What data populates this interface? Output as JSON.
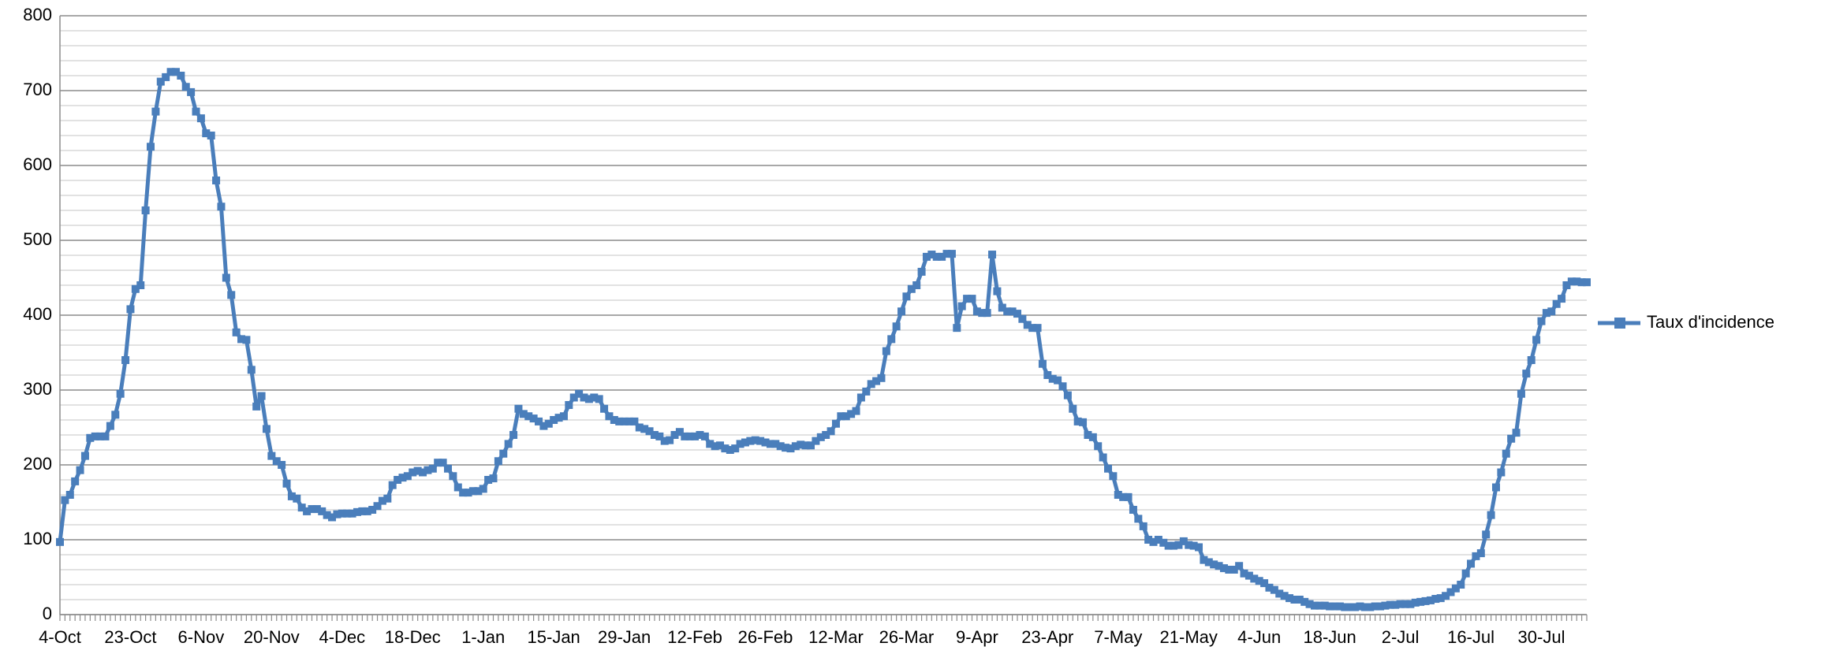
{
  "chart_data": {
    "type": "line",
    "categories": [
      "4-Oct",
      null,
      null,
      null,
      null,
      null,
      null,
      null,
      null,
      null,
      null,
      null,
      null,
      null,
      "23-Oct",
      null,
      null,
      null,
      null,
      null,
      null,
      null,
      null,
      null,
      null,
      null,
      null,
      null,
      "6-Nov",
      null,
      null,
      null,
      null,
      null,
      null,
      null,
      null,
      null,
      null,
      null,
      null,
      null,
      "20-Nov",
      null,
      null,
      null,
      null,
      null,
      null,
      null,
      null,
      null,
      null,
      null,
      null,
      null,
      "4-Dec",
      null,
      null,
      null,
      null,
      null,
      null,
      null,
      null,
      null,
      null,
      null,
      null,
      null,
      "18-Dec",
      null,
      null,
      null,
      null,
      null,
      null,
      null,
      null,
      null,
      null,
      null,
      null,
      null,
      "1-Jan",
      null,
      null,
      null,
      null,
      null,
      null,
      null,
      null,
      null,
      null,
      null,
      null,
      null,
      "15-Jan",
      null,
      null,
      null,
      null,
      null,
      null,
      null,
      null,
      null,
      null,
      null,
      null,
      null,
      "29-Jan",
      null,
      null,
      null,
      null,
      null,
      null,
      null,
      null,
      null,
      null,
      null,
      null,
      null,
      "12-Feb",
      null,
      null,
      null,
      null,
      null,
      null,
      null,
      null,
      null,
      null,
      null,
      null,
      null,
      "26-Feb",
      null,
      null,
      null,
      null,
      null,
      null,
      null,
      null,
      null,
      null,
      null,
      null,
      null,
      "12-Mar",
      null,
      null,
      null,
      null,
      null,
      null,
      null,
      null,
      null,
      null,
      null,
      null,
      null,
      "26-Mar",
      null,
      null,
      null,
      null,
      null,
      null,
      null,
      null,
      null,
      null,
      null,
      null,
      null,
      "9-Apr",
      null,
      null,
      null,
      null,
      null,
      null,
      null,
      null,
      null,
      null,
      null,
      null,
      null,
      "23-Apr",
      null,
      null,
      null,
      null,
      null,
      null,
      null,
      null,
      null,
      null,
      null,
      null,
      null,
      "7-May",
      null,
      null,
      null,
      null,
      null,
      null,
      null,
      null,
      null,
      null,
      null,
      null,
      null,
      "21-May",
      null,
      null,
      null,
      null,
      null,
      null,
      null,
      null,
      null,
      null,
      null,
      null,
      null,
      "4-Jun",
      null,
      null,
      null,
      null,
      null,
      null,
      null,
      null,
      null,
      null,
      null,
      null,
      null,
      "18-Jun",
      null,
      null,
      null,
      null,
      null,
      null,
      null,
      null,
      null,
      null,
      null,
      null,
      null,
      "2-Jul",
      null,
      null,
      null,
      null,
      null,
      null,
      null,
      null,
      null,
      null,
      null,
      null,
      null,
      "16-Jul",
      null,
      null,
      null,
      null,
      null,
      null,
      null,
      null,
      null,
      null,
      null,
      null,
      null,
      "30-Jul",
      null,
      null,
      null,
      null,
      null,
      null,
      null,
      null,
      null
    ],
    "series": [
      {
        "name": "Taux d'incidence",
        "color": "#4a7ebb",
        "values": [
          97,
          153,
          160,
          178,
          193,
          212,
          236,
          238,
          238,
          238,
          252,
          267,
          295,
          340,
          408,
          435,
          440,
          540,
          625,
          672,
          712,
          718,
          725,
          725,
          720,
          705,
          698,
          672,
          663,
          643,
          640,
          580,
          545,
          450,
          427,
          377,
          368,
          367,
          327,
          278,
          292,
          248,
          212,
          205,
          200,
          175,
          158,
          155,
          143,
          138,
          141,
          141,
          138,
          133,
          130,
          134,
          135,
          135,
          135,
          137,
          138,
          138,
          140,
          145,
          152,
          155,
          173,
          180,
          183,
          185,
          190,
          192,
          190,
          193,
          195,
          203,
          203,
          195,
          185,
          170,
          163,
          163,
          165,
          165,
          168,
          180,
          182,
          205,
          215,
          228,
          240,
          275,
          268,
          265,
          262,
          258,
          252,
          255,
          260,
          263,
          265,
          280,
          290,
          295,
          290,
          288,
          290,
          288,
          275,
          265,
          260,
          258,
          258,
          258,
          258,
          250,
          248,
          245,
          240,
          238,
          232,
          233,
          240,
          244,
          238,
          238,
          238,
          240,
          238,
          228,
          225,
          226,
          222,
          220,
          222,
          228,
          230,
          232,
          233,
          232,
          230,
          228,
          228,
          225,
          223,
          222,
          225,
          227,
          226,
          226,
          232,
          237,
          240,
          245,
          255,
          265,
          265,
          268,
          272,
          290,
          298,
          308,
          312,
          316,
          352,
          368,
          385,
          405,
          425,
          435,
          440,
          458,
          478,
          481,
          478,
          478,
          482,
          482,
          383,
          412,
          422,
          422,
          405,
          403,
          403,
          481,
          432,
          410,
          405,
          405,
          402,
          395,
          387,
          383,
          383,
          335,
          320,
          315,
          313,
          305,
          293,
          275,
          258,
          257,
          240,
          237,
          225,
          210,
          195,
          185,
          160,
          157,
          157,
          140,
          128,
          118,
          100,
          97,
          100,
          96,
          92,
          92,
          93,
          98,
          93,
          92,
          90,
          73,
          70,
          67,
          65,
          62,
          60,
          60,
          65,
          55,
          52,
          48,
          45,
          42,
          36,
          33,
          28,
          25,
          22,
          20,
          20,
          17,
          14,
          12,
          12,
          12,
          11,
          11,
          11,
          10,
          10,
          10,
          11,
          10,
          10,
          11,
          11,
          12,
          13,
          13,
          14,
          14,
          14,
          16,
          17,
          18,
          19,
          21,
          22,
          25,
          30,
          35,
          40,
          55,
          68,
          78,
          82,
          107,
          133,
          170,
          190,
          215,
          235,
          243,
          295,
          322,
          340,
          367,
          392,
          403,
          405,
          415,
          422,
          440,
          445,
          445,
          444,
          444
        ]
      }
    ],
    "ylim": [
      0,
      800
    ],
    "yticks": [
      0,
      100,
      200,
      300,
      400,
      500,
      600,
      700,
      800
    ],
    "minor_yticks": [
      20,
      40,
      60,
      80,
      120,
      140,
      160,
      180,
      220,
      240,
      260,
      280,
      320,
      340,
      360,
      380,
      420,
      440,
      460,
      480,
      520,
      540,
      560,
      580,
      620,
      640,
      660,
      680,
      720,
      740,
      760,
      780
    ],
    "grid": true,
    "legend": "right",
    "marker": "square"
  }
}
